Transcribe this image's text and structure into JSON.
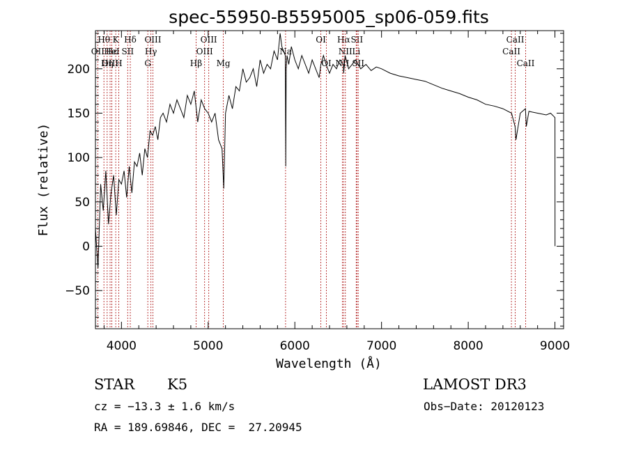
{
  "chart_data": {
    "type": "line",
    "title": "spec-55950-B5595005_sp06-059.fits",
    "xlabel": "Wavelength (Å)",
    "ylabel": "Flux (relative)",
    "xlim": [
      3700,
      9100
    ],
    "ylim": [
      -93,
      243
    ],
    "x_ticks": [
      4000,
      5000,
      6000,
      7000,
      8000,
      9000
    ],
    "y_ticks": [
      -50,
      0,
      50,
      100,
      150,
      200
    ],
    "series": [
      {
        "name": "flux",
        "x": [
          3700,
          3730,
          3760,
          3790,
          3820,
          3850,
          3880,
          3910,
          3940,
          3970,
          4000,
          4030,
          4060,
          4090,
          4120,
          4150,
          4180,
          4210,
          4240,
          4270,
          4300,
          4330,
          4360,
          4390,
          4420,
          4450,
          4480,
          4520,
          4560,
          4600,
          4640,
          4680,
          4720,
          4760,
          4800,
          4840,
          4880,
          4920,
          4960,
          5000,
          5040,
          5080,
          5120,
          5160,
          5180,
          5200,
          5240,
          5280,
          5320,
          5360,
          5400,
          5440,
          5480,
          5520,
          5560,
          5600,
          5640,
          5680,
          5720,
          5760,
          5800,
          5830,
          5850,
          5870,
          5890,
          5895,
          5900,
          5910,
          5930,
          5960,
          6000,
          6040,
          6080,
          6120,
          6160,
          6200,
          6240,
          6280,
          6300,
          6330,
          6360,
          6400,
          6440,
          6480,
          6520,
          6560,
          6563,
          6580,
          6620,
          6660,
          6700,
          6760,
          6820,
          6880,
          6940,
          7000,
          7100,
          7200,
          7300,
          7400,
          7500,
          7600,
          7700,
          7800,
          7900,
          8000,
          8100,
          8200,
          8300,
          8400,
          8500,
          8540,
          8550,
          8600,
          8660,
          8670,
          8700,
          8800,
          8900,
          8950,
          9000,
          9001
        ],
        "y": [
          20,
          -25,
          70,
          40,
          85,
          25,
          60,
          80,
          35,
          75,
          70,
          85,
          55,
          90,
          60,
          95,
          90,
          105,
          80,
          110,
          100,
          130,
          125,
          135,
          120,
          145,
          150,
          140,
          160,
          150,
          165,
          155,
          145,
          170,
          160,
          175,
          140,
          165,
          155,
          150,
          140,
          150,
          120,
          110,
          65,
          150,
          170,
          155,
          180,
          175,
          200,
          185,
          190,
          200,
          180,
          210,
          195,
          205,
          200,
          220,
          210,
          240,
          225,
          220,
          215,
          90,
          200,
          215,
          205,
          225,
          210,
          200,
          215,
          205,
          195,
          210,
          200,
          190,
          205,
          215,
          205,
          195,
          205,
          200,
          210,
          205,
          195,
          215,
          200,
          205,
          210,
          200,
          205,
          198,
          202,
          200,
          195,
          192,
          190,
          188,
          186,
          182,
          178,
          175,
          172,
          168,
          165,
          160,
          158,
          155,
          150,
          135,
          120,
          150,
          155,
          135,
          152,
          150,
          148,
          150,
          145,
          0
        ]
      }
    ],
    "spectral_lines": [
      {
        "label": "Hθ",
        "x": 3798,
        "row": 1
      },
      {
        "label": "OII",
        "x": 3727,
        "row": 2
      },
      {
        "label": "OIII",
        "x": 3869,
        "row": 3
      },
      {
        "label": "Hε",
        "x": 3889,
        "row": 2
      },
      {
        "label": "K",
        "x": 3934,
        "row": 1
      },
      {
        "label": "HeI",
        "x": 3889,
        "row": 2
      },
      {
        "label": "H",
        "x": 3969,
        "row": 3
      },
      {
        "label": "Hη",
        "x": 3835,
        "row": 3
      },
      {
        "label": "Hδ",
        "x": 4102,
        "row": 1
      },
      {
        "label": "SII",
        "x": 4072,
        "row": 2
      },
      {
        "label": "OIII",
        "x": 4363,
        "row": 1
      },
      {
        "label": "Hγ",
        "x": 4340,
        "row": 2
      },
      {
        "label": "G",
        "x": 4304,
        "row": 3
      },
      {
        "label": "Hβ",
        "x": 4861,
        "row": 3
      },
      {
        "label": "OIII",
        "x": 5007,
        "row": 1
      },
      {
        "label": "OIII",
        "x": 4959,
        "row": 2
      },
      {
        "label": "Mg",
        "x": 5175,
        "row": 3
      },
      {
        "label": "Na",
        "x": 5893,
        "row": 2
      },
      {
        "label": "OI",
        "x": 6300,
        "row": 1
      },
      {
        "label": "OI",
        "x": 6364,
        "row": 3
      },
      {
        "label": "Hα",
        "x": 6563,
        "row": 1
      },
      {
        "label": "NII",
        "x": 6583,
        "row": 2
      },
      {
        "label": "NII",
        "x": 6548,
        "row": 3
      },
      {
        "label": "SII",
        "x": 6716,
        "row": 1
      },
      {
        "label": "Li",
        "x": 6708,
        "row": 2
      },
      {
        "label": "SII",
        "x": 6731,
        "row": 3
      },
      {
        "label": "CaII",
        "x": 8542,
        "row": 1
      },
      {
        "label": "CaII",
        "x": 8498,
        "row": 2
      },
      {
        "label": "CaII",
        "x": 8662,
        "row": 3
      }
    ]
  },
  "info": {
    "class_label": "STAR",
    "subclass_label": "K5",
    "survey": "LAMOST DR3",
    "redshift_text": "cz = −13.3 ± 1.6 km/s",
    "obs_date_text": "Obs−Date: 20120123",
    "coords_text": "RA = 189.69846, DEC =  27.20945"
  }
}
